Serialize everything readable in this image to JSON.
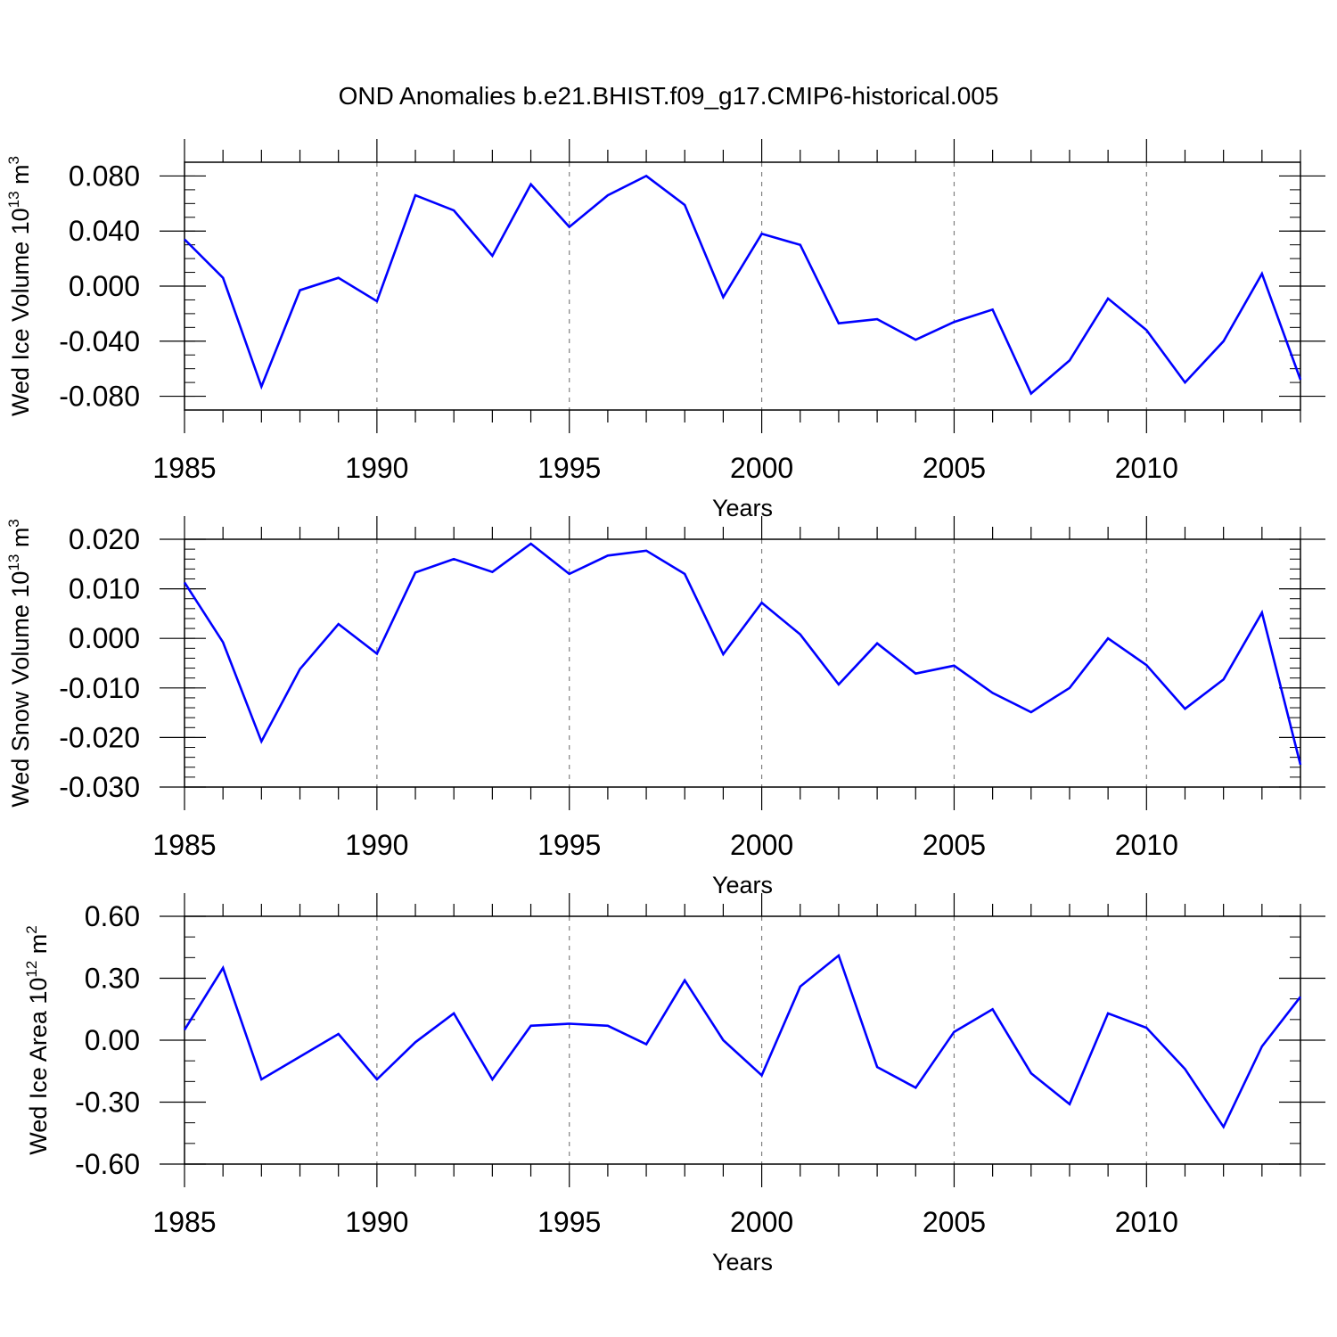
{
  "title": "OND Anomalies b.e21.BHIST.f09_g17.CMIP6-historical.005",
  "colors": {
    "line": "#0000ff",
    "axis": "#000000",
    "grid": "#808080"
  },
  "chart_data": [
    {
      "type": "line",
      "ylabel": {
        "text": "Wed Ice Volume 10",
        "sup": "13",
        "unit": " m",
        "unit_sup": "3"
      },
      "xlabel": "Years",
      "xlim": [
        1985,
        2014
      ],
      "ylim": [
        -0.09,
        0.09
      ],
      "x_ticks": [
        1985,
        1990,
        1995,
        2000,
        2005,
        2010
      ],
      "x_tick_labels": [
        "1985",
        "1990",
        "1995",
        "2000",
        "2005",
        "2010"
      ],
      "y_ticks": [
        -0.08,
        -0.04,
        0.0,
        0.04,
        0.08
      ],
      "y_tick_labels": [
        "-0.080",
        "-0.040",
        "0.000",
        "0.040",
        "0.080"
      ],
      "y_minor_step": 0.01,
      "grid": "vertical-dashed",
      "x": [
        1985,
        1986,
        1987,
        1988,
        1989,
        1990,
        1991,
        1992,
        1993,
        1994,
        1995,
        1996,
        1997,
        1998,
        1999,
        2000,
        2001,
        2002,
        2003,
        2004,
        2005,
        2006,
        2007,
        2008,
        2009,
        2010,
        2011,
        2012,
        2013,
        2014
      ],
      "values": [
        0.034,
        0.006,
        -0.073,
        -0.003,
        0.006,
        -0.011,
        0.066,
        0.055,
        0.022,
        0.074,
        0.043,
        0.066,
        0.08,
        0.059,
        -0.008,
        0.038,
        0.03,
        -0.027,
        -0.024,
        -0.039,
        -0.026,
        -0.017,
        -0.078,
        -0.054,
        -0.009,
        -0.032,
        -0.07,
        -0.04,
        0.009,
        -0.068
      ]
    },
    {
      "type": "line",
      "ylabel": {
        "text": "Wed Snow Volume 10",
        "sup": "13",
        "unit": " m",
        "unit_sup": "3"
      },
      "xlabel": "Years",
      "xlim": [
        1985,
        2014
      ],
      "ylim": [
        -0.03,
        0.02
      ],
      "x_ticks": [
        1985,
        1990,
        1995,
        2000,
        2005,
        2010
      ],
      "x_tick_labels": [
        "1985",
        "1990",
        "1995",
        "2000",
        "2005",
        "2010"
      ],
      "y_ticks": [
        -0.03,
        -0.02,
        -0.01,
        0.0,
        0.01,
        0.02
      ],
      "y_tick_labels": [
        "-0.030",
        "-0.020",
        "-0.010",
        "0.000",
        "0.010",
        "0.020"
      ],
      "y_minor_step": 0.002,
      "grid": "vertical-dashed",
      "x": [
        1985,
        1986,
        1987,
        1988,
        1989,
        1990,
        1991,
        1992,
        1993,
        1994,
        1995,
        1996,
        1997,
        1998,
        1999,
        2000,
        2001,
        2002,
        2003,
        2004,
        2005,
        2006,
        2007,
        2008,
        2009,
        2010,
        2011,
        2012,
        2013,
        2014
      ],
      "values": [
        0.0113,
        -0.0008,
        -0.0208,
        -0.0062,
        0.0029,
        -0.0031,
        0.0133,
        0.016,
        0.0134,
        0.0191,
        0.013,
        0.0167,
        0.0177,
        0.013,
        -0.0032,
        0.0072,
        0.0008,
        -0.0093,
        -0.001,
        -0.0071,
        -0.0055,
        -0.011,
        -0.0149,
        -0.01,
        0.0,
        -0.0054,
        -0.0142,
        -0.0083,
        0.0052,
        -0.0255
      ]
    },
    {
      "type": "line",
      "ylabel": {
        "text": "Wed Ice Area 10",
        "sup": "12",
        "unit": " m",
        "unit_sup": "2"
      },
      "xlabel": "Years",
      "xlim": [
        1985,
        2014
      ],
      "ylim": [
        -0.6,
        0.6
      ],
      "x_ticks": [
        1985,
        1990,
        1995,
        2000,
        2005,
        2010
      ],
      "x_tick_labels": [
        "1985",
        "1990",
        "1995",
        "2000",
        "2005",
        "2010"
      ],
      "y_ticks": [
        -0.6,
        -0.3,
        0.0,
        0.3,
        0.6
      ],
      "y_tick_labels": [
        "-0.60",
        "-0.30",
        "0.00",
        "0.30",
        "0.60"
      ],
      "y_minor_step": 0.1,
      "grid": "vertical-dashed",
      "x": [
        1985,
        1986,
        1987,
        1988,
        1989,
        1990,
        1991,
        1992,
        1993,
        1994,
        1995,
        1996,
        1997,
        1998,
        1999,
        2000,
        2001,
        2002,
        2003,
        2004,
        2005,
        2006,
        2007,
        2008,
        2009,
        2010,
        2011,
        2012,
        2013,
        2014
      ],
      "values": [
        0.05,
        0.35,
        -0.19,
        -0.08,
        0.03,
        -0.19,
        -0.01,
        0.13,
        -0.19,
        0.07,
        0.08,
        0.07,
        -0.02,
        0.29,
        0.0,
        -0.17,
        0.26,
        0.41,
        -0.13,
        -0.23,
        0.04,
        0.15,
        -0.16,
        -0.31,
        0.13,
        0.06,
        -0.14,
        -0.42,
        -0.03,
        0.21
      ]
    }
  ]
}
